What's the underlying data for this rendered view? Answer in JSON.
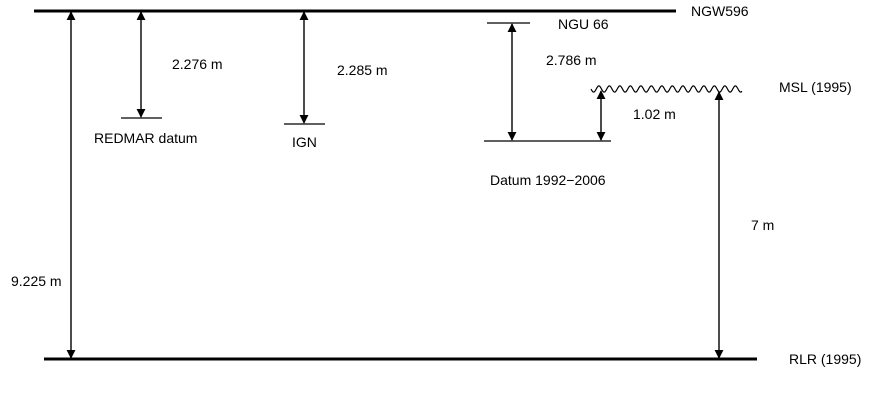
{
  "levels": {
    "ngw596": "NGW596",
    "ngu66": "NGU 66",
    "msl": "MSL (1995)",
    "redmar": "REDMAR datum",
    "ign": "IGN",
    "datum": "Datum 1992−2006",
    "rlr": "RLR (1995)"
  },
  "measurements": {
    "ngw_to_rlr": "9.225 m",
    "ngw_to_redmar": "2.276 m",
    "ngw_to_ign": "2.285 m",
    "ngu_to_datum": "2.786 m",
    "msl_to_datum": "1.02 m",
    "msl_to_rlr": "7 m"
  },
  "colors": {
    "line": "#000000",
    "background": "#ffffff"
  }
}
